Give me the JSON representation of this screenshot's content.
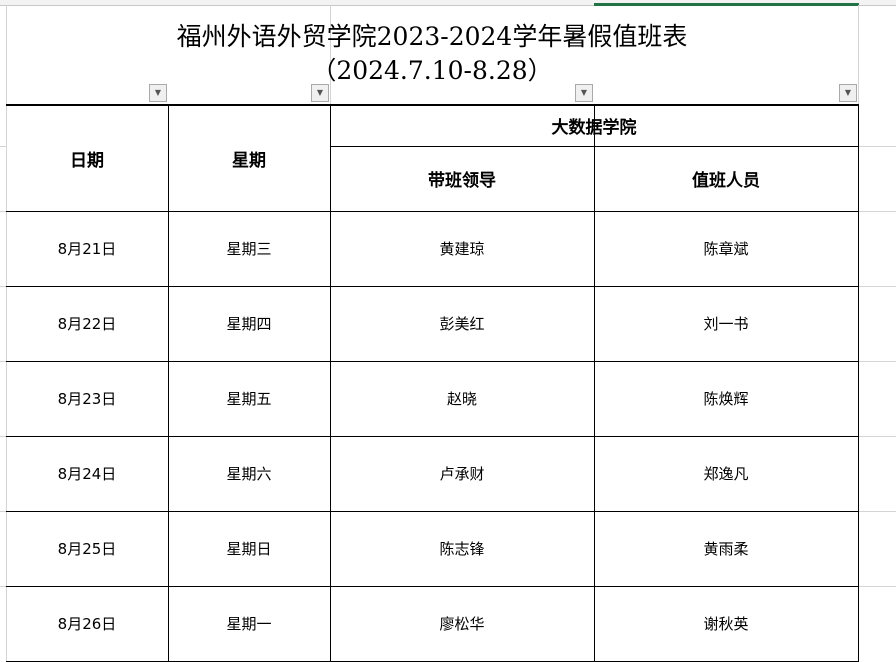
{
  "sheet": {
    "title": "福州外语外贸学院2023-2024学年暑假值班表",
    "subtitle": "（2024.7.10-8.28）",
    "accent_color": "#217346"
  },
  "headers": {
    "date": "日期",
    "weekday": "星期",
    "group": "大数据学院",
    "leader": "带班领导",
    "staff": "值班人员"
  },
  "rows": [
    {
      "date": "8月21日",
      "weekday": "星期三",
      "leader": "黄建琼",
      "staff": "陈章斌"
    },
    {
      "date": "8月22日",
      "weekday": "星期四",
      "leader": "彭美红",
      "staff": "刘一书"
    },
    {
      "date": "8月23日",
      "weekday": "星期五",
      "leader": "赵晓",
      "staff": "陈焕辉"
    },
    {
      "date": "8月24日",
      "weekday": "星期六",
      "leader": "卢承财",
      "staff": "郑逸凡"
    },
    {
      "date": "8月25日",
      "weekday": "星期日",
      "leader": "陈志锋",
      "staff": "黄雨柔"
    },
    {
      "date": "8月26日",
      "weekday": "星期一",
      "leader": "廖松华",
      "staff": "谢秋英"
    }
  ]
}
